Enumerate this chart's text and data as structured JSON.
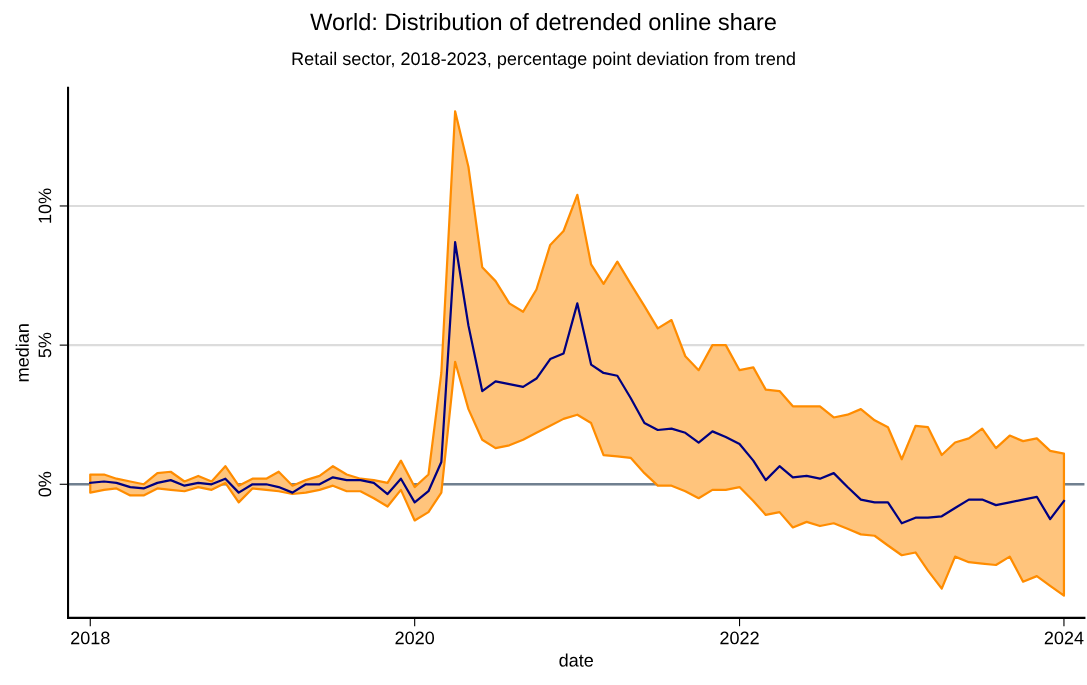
{
  "chart_data": {
    "type": "line",
    "title": "World: Distribution of detrended online share",
    "subtitle": "Retail sector, 2018-2023, percentage point deviation from trend",
    "xlabel": "date",
    "ylabel": "median",
    "x": [
      "2018-01",
      "2018-02",
      "2018-03",
      "2018-04",
      "2018-05",
      "2018-06",
      "2018-07",
      "2018-08",
      "2018-09",
      "2018-10",
      "2018-11",
      "2018-12",
      "2019-01",
      "2019-02",
      "2019-03",
      "2019-04",
      "2019-05",
      "2019-06",
      "2019-07",
      "2019-08",
      "2019-09",
      "2019-10",
      "2019-11",
      "2019-12",
      "2020-01",
      "2020-02",
      "2020-03",
      "2020-04",
      "2020-05",
      "2020-06",
      "2020-07",
      "2020-08",
      "2020-09",
      "2020-10",
      "2020-11",
      "2020-12",
      "2021-01",
      "2021-02",
      "2021-03",
      "2021-04",
      "2021-05",
      "2021-06",
      "2021-07",
      "2021-08",
      "2021-09",
      "2021-10",
      "2021-11",
      "2021-12",
      "2022-01",
      "2022-02",
      "2022-03",
      "2022-04",
      "2022-05",
      "2022-06",
      "2022-07",
      "2022-08",
      "2022-09",
      "2022-10",
      "2022-11",
      "2022-12",
      "2023-01",
      "2023-02",
      "2023-03",
      "2023-04",
      "2023-05",
      "2023-06",
      "2023-07",
      "2023-08",
      "2023-09",
      "2023-10",
      "2023-11",
      "2023-12",
      "2024-01"
    ],
    "series": [
      {
        "color": "#000080",
        "values": [
          0.05,
          0.1,
          0.05,
          -0.1,
          -0.15,
          0.05,
          0.15,
          -0.05,
          0.05,
          0.0,
          0.2,
          -0.3,
          0.0,
          0.0,
          -0.1,
          -0.3,
          0.0,
          0.0,
          0.25,
          0.15,
          0.15,
          0.05,
          -0.35,
          0.2,
          -0.65,
          -0.25,
          0.8,
          8.7,
          5.7,
          3.35,
          3.7,
          3.6,
          3.5,
          3.8,
          4.5,
          4.7,
          6.5,
          4.3,
          4.0,
          3.9,
          3.1,
          2.2,
          1.95,
          2.0,
          1.85,
          1.5,
          1.9,
          1.7,
          1.45,
          0.85,
          0.15,
          0.65,
          0.25,
          0.3,
          0.2,
          0.4,
          -0.1,
          -0.55,
          -0.65,
          -0.65,
          -1.4,
          -1.2,
          -1.2,
          -1.15,
          -0.85,
          -0.55,
          -0.55,
          -0.75,
          -0.65,
          -0.55,
          -0.45,
          -1.25,
          -0.6
        ],
        "upper": [
          0.35,
          0.35,
          0.2,
          0.1,
          0.0,
          0.4,
          0.45,
          0.1,
          0.3,
          0.1,
          0.65,
          -0.05,
          0.2,
          0.2,
          0.45,
          -0.05,
          0.15,
          0.3,
          0.65,
          0.35,
          0.2,
          0.15,
          0.05,
          0.85,
          -0.1,
          0.35,
          4.0,
          13.4,
          11.4,
          7.8,
          7.3,
          6.5,
          6.2,
          7.0,
          8.6,
          9.1,
          10.4,
          7.9,
          7.2,
          8.0,
          7.2,
          6.4,
          5.6,
          5.9,
          4.6,
          4.1,
          5.0,
          5.0,
          4.1,
          4.2,
          3.4,
          3.35,
          2.8,
          2.8,
          2.8,
          2.4,
          2.5,
          2.7,
          2.3,
          2.05,
          0.9,
          2.1,
          2.05,
          1.05,
          1.5,
          1.65,
          2.0,
          1.3,
          1.75,
          1.55,
          1.65,
          1.2,
          1.1
        ],
        "lower": [
          -0.3,
          -0.2,
          -0.15,
          -0.4,
          -0.4,
          -0.15,
          -0.2,
          -0.25,
          -0.1,
          -0.2,
          0.05,
          -0.65,
          -0.15,
          -0.2,
          -0.25,
          -0.35,
          -0.3,
          -0.2,
          -0.05,
          -0.25,
          -0.25,
          -0.5,
          -0.8,
          -0.2,
          -1.3,
          -1.0,
          -0.3,
          4.4,
          2.7,
          1.6,
          1.3,
          1.4,
          1.6,
          1.85,
          2.1,
          2.35,
          2.5,
          2.2,
          1.05,
          1.0,
          0.95,
          0.4,
          -0.05,
          -0.05,
          -0.25,
          -0.5,
          -0.2,
          -0.2,
          -0.1,
          -0.6,
          -1.1,
          -1.0,
          -1.55,
          -1.35,
          -1.5,
          -1.4,
          -1.6,
          -1.8,
          -1.85,
          -2.2,
          -2.55,
          -2.45,
          -3.1,
          -3.75,
          -2.6,
          -2.8,
          -2.85,
          -2.9,
          -2.6,
          -3.5,
          -3.3,
          -3.65,
          -4.0
        ]
      }
    ],
    "xlim": [
      "2017-11-12",
      "2024-02-16"
    ],
    "xticks": [
      {
        "value": "2018-01-01",
        "label": "2018"
      },
      {
        "value": "2020-01-01",
        "label": "2020"
      },
      {
        "value": "2022-01-01",
        "label": "2022"
      },
      {
        "value": "2024-01-01",
        "label": "2024"
      }
    ],
    "ylim": [
      -4.8,
      14.25
    ],
    "yticks": [
      {
        "value": 0,
        "label": "0%"
      },
      {
        "value": 5,
        "label": "5%"
      },
      {
        "value": 10,
        "label": "10%"
      }
    ],
    "ref_lines": [
      {
        "axis": "y",
        "value": 0,
        "color": "#708090"
      }
    ],
    "grid": "y",
    "marker": "none",
    "line_style": "solid"
  }
}
